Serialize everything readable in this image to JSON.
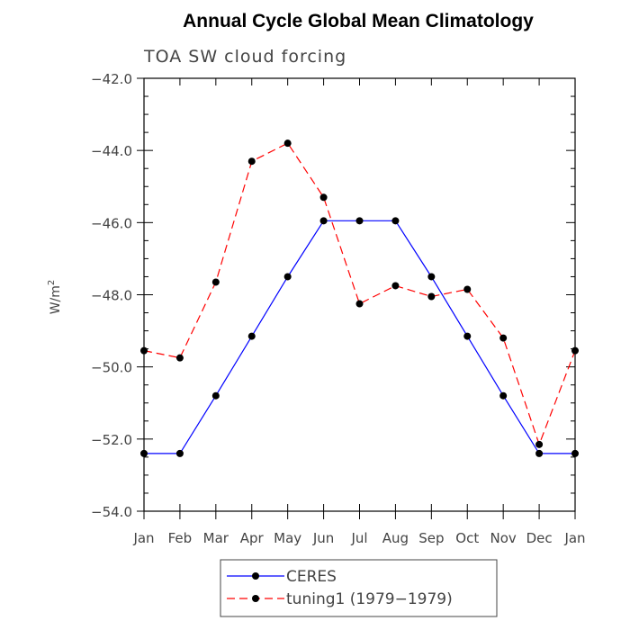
{
  "chart_data": {
    "type": "line",
    "title": "Annual Cycle Global Mean Climatology",
    "subtitle": "TOA SW cloud forcing",
    "xlabel": "",
    "ylabel": "W/m",
    "ylabel_superscript": "2",
    "categories": [
      "Jan",
      "Feb",
      "Mar",
      "Apr",
      "May",
      "Jun",
      "Jul",
      "Aug",
      "Sep",
      "Oct",
      "Nov",
      "Dec",
      "Jan"
    ],
    "ylim": [
      -54.0,
      -42.0
    ],
    "yticks": [
      -54.0,
      -52.0,
      -50.0,
      -48.0,
      -46.0,
      -44.0,
      -42.0
    ],
    "ytick_labels": [
      "−54.0",
      "−52.0",
      "−50.0",
      "−48.0",
      "−46.0",
      "−44.0",
      "−42.0"
    ],
    "grid": false,
    "legend_position": "bottom",
    "series": [
      {
        "name": "CERES",
        "color": "#0000ff",
        "style": "solid",
        "values": [
          -52.4,
          -52.4,
          -50.8,
          -49.15,
          -47.5,
          -45.95,
          -45.95,
          -45.95,
          -47.5,
          -49.15,
          -50.8,
          -52.4,
          -52.4
        ]
      },
      {
        "name": "tuning1 (1979−1979)",
        "color": "#ff0000",
        "style": "dashed",
        "values": [
          -49.55,
          -49.75,
          -47.65,
          -44.3,
          -43.8,
          -45.3,
          -48.25,
          -47.75,
          -48.05,
          -47.85,
          -49.2,
          -52.15,
          -49.55
        ]
      }
    ]
  }
}
